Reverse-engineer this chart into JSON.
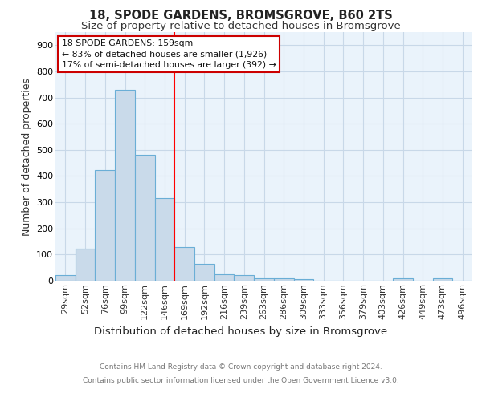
{
  "title1": "18, SPODE GARDENS, BROMSGROVE, B60 2TS",
  "title2": "Size of property relative to detached houses in Bromsgrove",
  "xlabel": "Distribution of detached houses by size in Bromsgrove",
  "ylabel": "Number of detached properties",
  "footer1": "Contains HM Land Registry data © Crown copyright and database right 2024.",
  "footer2": "Contains public sector information licensed under the Open Government Licence v3.0.",
  "bar_labels": [
    "29sqm",
    "52sqm",
    "76sqm",
    "99sqm",
    "122sqm",
    "146sqm",
    "169sqm",
    "192sqm",
    "216sqm",
    "239sqm",
    "263sqm",
    "286sqm",
    "309sqm",
    "333sqm",
    "356sqm",
    "379sqm",
    "403sqm",
    "426sqm",
    "449sqm",
    "473sqm",
    "496sqm"
  ],
  "bar_values": [
    20,
    122,
    422,
    730,
    480,
    315,
    130,
    65,
    23,
    20,
    10,
    8,
    5,
    0,
    0,
    0,
    0,
    8,
    0,
    8,
    0
  ],
  "bar_color": "#c9daea",
  "bar_edge_color": "#6aaed6",
  "grid_color": "#c8d8e8",
  "red_line_x": 5.5,
  "annotation_text": "18 SPODE GARDENS: 159sqm\n← 83% of detached houses are smaller (1,926)\n17% of semi-detached houses are larger (392) →",
  "annotation_box_color": "#ffffff",
  "annotation_box_edge": "#cc0000",
  "ylim": [
    0,
    950
  ],
  "yticks": [
    0,
    100,
    200,
    300,
    400,
    500,
    600,
    700,
    800,
    900
  ],
  "background_color": "#eaf3fb",
  "title1_fontsize": 10.5,
  "title2_fontsize": 9.5,
  "xlabel_fontsize": 9.5,
  "ylabel_fontsize": 9,
  "tick_fontsize": 8,
  "footer_fontsize": 6.5
}
